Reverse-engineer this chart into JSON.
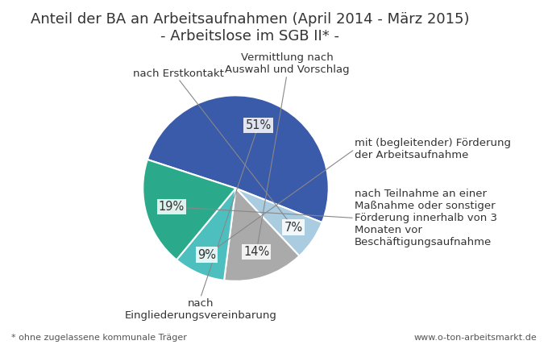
{
  "title": "Anteil der BA an Arbeitsaufnahmen (April 2014 - März 2015)\n- Arbeitslose im SGB II* -",
  "slices": [
    51,
    7,
    14,
    9,
    19
  ],
  "slice_order_labels": [
    "nach\nEingliederungsvereinbarung",
    "nach Erstkontakt",
    "Vermittlung nach\nAuswahl und Vorschlag",
    "mit (begleitender) Förderung\nder Arbeitsaufnahme",
    "nach Teilnahme an einer\nMaßnahme oder sonstiger\nFörderung innerhalb von 3\nMonaten vor\nBeschäftigungsaufnahme"
  ],
  "pct_labels": [
    "51%",
    "7%",
    "14%",
    "9%",
    "19%"
  ],
  "colors": [
    "#3a5aaa",
    "#aacce0",
    "#aaaaaa",
    "#4dbfbf",
    "#2aaa8a"
  ],
  "background_color": "#ffffff",
  "footnote": "* ohne zugelassene kommunale Träger",
  "url": "www.o-ton-arbeitsmarkt.de",
  "startangle": 162,
  "title_fontsize": 13,
  "label_fontsize": 9.5,
  "pct_fontsize": 10.5,
  "pct_colors": [
    "#333333",
    "#333333",
    "#333333",
    "#333333",
    "#333333"
  ]
}
